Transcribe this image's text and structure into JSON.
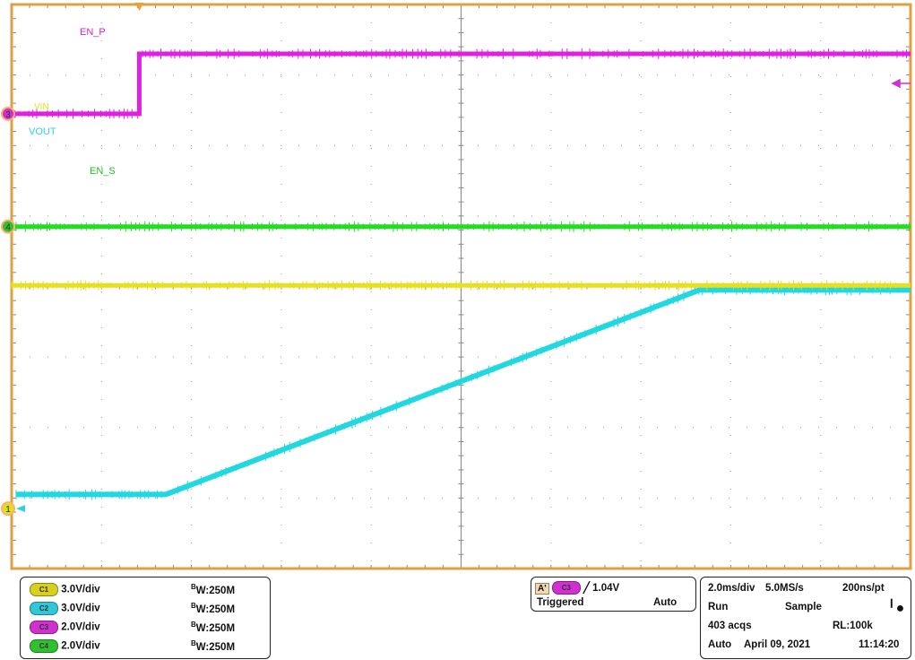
{
  "chart_data": {
    "type": "line",
    "grid": true,
    "x_units": "ms",
    "x_range": [
      0,
      20
    ],
    "horizontal_divisions": 10,
    "vertical_divisions": 8,
    "trigger_time_ms": 2.84,
    "series": [
      {
        "name": "EN_P",
        "channel": "3",
        "color": "#e020e0",
        "volts_per_div": 2.0,
        "ground_div_from_top": 1.55,
        "points": [
          [
            0,
            0
          ],
          [
            2.84,
            0
          ],
          [
            2.84,
            1.7
          ],
          [
            20,
            1.7
          ]
        ]
      },
      {
        "name": "EN_S",
        "channel": "4",
        "color": "#22dd22",
        "volts_per_div": 2.0,
        "ground_div_from_top": 3.15,
        "points": [
          [
            0,
            0
          ],
          [
            20,
            0
          ]
        ]
      },
      {
        "name": "VIN",
        "channel": "1",
        "color": "#e6e020",
        "volts_per_div": 3.0,
        "ground_div_from_top": 7.15,
        "points": [
          [
            0,
            9.5
          ],
          [
            20,
            9.5
          ]
        ]
      },
      {
        "name": "VOUT",
        "channel": "2",
        "color": "#22d8e0",
        "volts_per_div": 3.0,
        "ground_div_from_top": 7.15,
        "points": [
          [
            0.1,
            0.6
          ],
          [
            3.43,
            0.6
          ],
          [
            15.3,
            9.3
          ],
          [
            20,
            9.3
          ]
        ]
      }
    ]
  },
  "markers": {
    "ch3": "3",
    "ch4": "4",
    "ch1": "1"
  },
  "channels": [
    {
      "pill": "C1",
      "scale": "3.0V/div",
      "bw_b": "B",
      "bw": "W:250M",
      "color": "#d8d020"
    },
    {
      "pill": "C2",
      "scale": "3.0V/div",
      "bw_b": "B",
      "bw": "W:250M",
      "color": "#30c8d8"
    },
    {
      "pill": "C3",
      "scale": "2.0V/div",
      "bw_b": "B",
      "bw": "W:250M",
      "color": "#d030d0"
    },
    {
      "pill": "C4",
      "scale": "2.0V/div",
      "bw_b": "B",
      "bw": "W:250M",
      "color": "#30c030"
    }
  ],
  "trigger": {
    "label": "A'",
    "source": "C3",
    "level": "1.04V",
    "state": "Triggered",
    "mode": "Auto"
  },
  "acquisition": {
    "timebase": "2.0ms/div",
    "sample_rate": "5.0MS/s",
    "resolution": "200ns/pt",
    "run": "Run",
    "mode": "Sample",
    "acqs": "403 acqs",
    "record_length": "RL:100k",
    "trigger_mode": "Auto",
    "date": "April 09, 2021",
    "time": "11:14:20"
  }
}
